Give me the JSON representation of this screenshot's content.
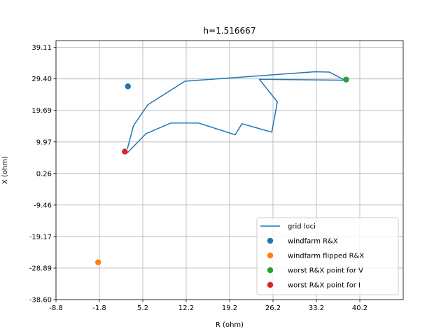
{
  "chart_data": {
    "type": "scatter",
    "title": "h=1.516667",
    "xlabel": "R (ohm)",
    "ylabel": "X (ohm)",
    "xlim": [
      -8.8,
      47.2
    ],
    "ylim": [
      -38.6,
      41.2
    ],
    "xticks": [
      "-8.8",
      "-1.8",
      "5.2",
      "12.2",
      "19.2",
      "26.2",
      "33.2",
      "40.2"
    ],
    "yticks": [
      "-38.60",
      "-28.89",
      "-19.17",
      "-9.46",
      "0.26",
      "9.97",
      "19.69",
      "29.40",
      "39.11"
    ],
    "grid": true,
    "legend_position": "lower-right",
    "series": [
      {
        "name": "grid loci",
        "kind": "line",
        "color": "#1f77b4",
        "x": [
          2.7,
          5.7,
          9.7,
          14.2,
          20.1,
          21.2,
          26.0,
          26.9,
          24.0,
          37.8,
          35.3,
          33.0,
          12.0,
          6.0,
          3.7,
          2.7
        ],
        "y": [
          6.6,
          12.5,
          15.8,
          15.8,
          12.2,
          15.6,
          13.0,
          22.3,
          29.3,
          29.0,
          31.5,
          31.6,
          28.7,
          21.4,
          15.0,
          7.8
        ]
      },
      {
        "name": "windfarm R&X",
        "kind": "point",
        "color": "#1f77b4",
        "x": [
          2.8
        ],
        "y": [
          27.1
        ]
      },
      {
        "name": "windfarm flipped R&X",
        "kind": "point",
        "color": "#ff7f0e",
        "x": [
          -2.0
        ],
        "y": [
          -27.1
        ]
      },
      {
        "name": "worst R&X point for V",
        "kind": "point",
        "color": "#2ca02c",
        "x": [
          38.0
        ],
        "y": [
          29.2
        ]
      },
      {
        "name": "worst R&X point for I",
        "kind": "point",
        "color": "#d62728",
        "x": [
          2.3
        ],
        "y": [
          7.0
        ]
      }
    ]
  }
}
